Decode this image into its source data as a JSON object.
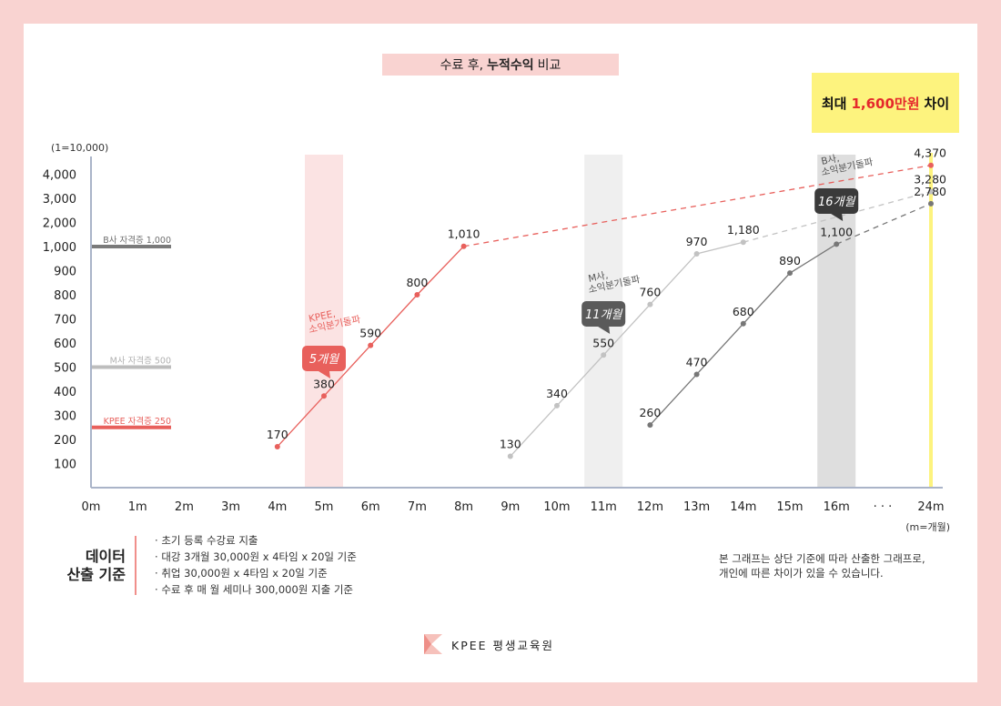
{
  "title": {
    "prefix": "수료 후,",
    "bold": "누적수익",
    "suffix": "비교"
  },
  "max_diff": {
    "prefix": "최대",
    "highlight": "1,600만원",
    "suffix": "차이"
  },
  "colors": {
    "kpee": "#e8605c",
    "m_company": "#bdbdbd",
    "b_company": "#6e6e6e",
    "highlight_yellow": "#fdf37e"
  },
  "chart_data": {
    "type": "line",
    "unit_label": "(1=10,000)",
    "x_unit_label": "(m=개월)",
    "x_ticks": [
      "0m",
      "1m",
      "2m",
      "3m",
      "4m",
      "5m",
      "6m",
      "7m",
      "8m",
      "9m",
      "10m",
      "11m",
      "12m",
      "13m",
      "14m",
      "15m",
      "16m",
      "· · ·",
      "24m"
    ],
    "y_ticks": [
      "100",
      "200",
      "300",
      "400",
      "500",
      "600",
      "700",
      "800",
      "900",
      "1,000",
      "2,000",
      "3,000",
      "4,000"
    ],
    "series": [
      {
        "id": "kpee",
        "x": [
          4,
          5,
          6,
          7,
          8
        ],
        "y": [
          170,
          380,
          590,
          800,
          1010
        ],
        "labels": [
          "170",
          "380",
          "590",
          "800",
          "1,010"
        ],
        "projection_end": {
          "x": 24,
          "y": 4370,
          "label": "4,370"
        }
      },
      {
        "id": "m",
        "x": [
          9,
          10,
          11,
          12,
          13,
          14
        ],
        "y": [
          130,
          340,
          550,
          760,
          970,
          1180
        ],
        "labels": [
          "130",
          "340",
          "550",
          "760",
          "970",
          "1,180"
        ],
        "projection_end": {
          "x": 24,
          "y": 3280,
          "label": "3,280"
        }
      },
      {
        "id": "b",
        "x": [
          12,
          13,
          14,
          15,
          16
        ],
        "y": [
          260,
          470,
          680,
          890,
          1100
        ],
        "labels": [
          "260",
          "470",
          "680",
          "890",
          "1,100"
        ],
        "projection_end": {
          "x": 24,
          "y": 2780,
          "label": "2,780"
        }
      }
    ],
    "reference_lines": [
      {
        "id": "b",
        "y": 1000,
        "label": "B사 자격증 1,000"
      },
      {
        "id": "m",
        "y": 500,
        "label": "M사 자격증 500"
      },
      {
        "id": "kpee",
        "y": 250,
        "label": "KPEE 자격증 250"
      }
    ],
    "breakeven": [
      {
        "id": "kpee",
        "x": 5,
        "note_lines": [
          "KPEE,",
          "소익분기돌파"
        ],
        "badge": "5개월"
      },
      {
        "id": "m",
        "x": 11,
        "note_lines": [
          "M사,",
          "소익분기돌파"
        ],
        "badge": "11개월"
      },
      {
        "id": "b",
        "x": 16,
        "note_lines": [
          "B사,",
          "소익분기돌파"
        ],
        "badge": "16개월"
      }
    ]
  },
  "method": {
    "title_line1": "데이터",
    "title_line2": "산출 기준",
    "items": [
      "초기 등록 수강료 지출",
      "대강 3개월 30,000원 x 4타임 x 20일 기준",
      "취업 30,000원 x 4타임 x 20일 기준",
      "수료 후 매 월 세미나 300,000원 지출 기준"
    ]
  },
  "note": {
    "line1": "본 그래프는 상단 기준에 따라 산출한 그래프로,",
    "line2": "개인에 따른 차이가 있을 수 있습니다."
  },
  "brand": {
    "name": "KPEE 평생교육원"
  }
}
